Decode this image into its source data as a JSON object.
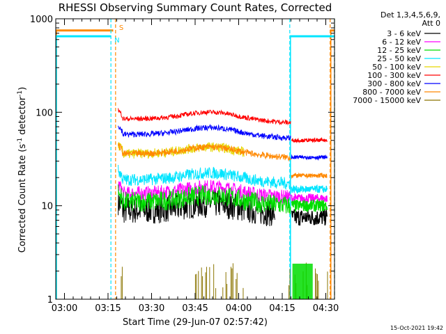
{
  "chart_data": {
    "type": "line",
    "title": "RHESSI Observing Summary Count Rates, Corrected",
    "xlabel": "Start Time (29-Jun-07 02:57:42)",
    "ylabel_main": "Corrected Count Rate (s",
    "ylabel_sup1": "-1",
    "ylabel_mid": " detector",
    "ylabel_sup2": "-1",
    "ylabel_end": ")",
    "y_scale": "log",
    "ylim": [
      1,
      1000
    ],
    "xlim_minutes": [
      -3,
      93
    ],
    "x_ticks": [
      {
        "m": 0,
        "label": "03:00"
      },
      {
        "m": 15,
        "label": "03:15"
      },
      {
        "m": 30,
        "label": "03:30"
      },
      {
        "m": 45,
        "label": "03:45"
      },
      {
        "m": 60,
        "label": "04:00"
      },
      {
        "m": 75,
        "label": "04:15"
      },
      {
        "m": 90,
        "label": "04:30"
      }
    ],
    "y_ticks": [
      {
        "v": 1,
        "label": "1"
      },
      {
        "v": 10,
        "label": "10"
      },
      {
        "v": 100,
        "label": "100"
      },
      {
        "v": 1000,
        "label": "1000"
      }
    ],
    "legend_header": [
      "Det 1,3,4,5,6,9,",
      "Att 0"
    ],
    "legend_placement": "right",
    "series": [
      {
        "name": "3 - 6 keV",
        "color": "#000000",
        "level": 9,
        "noise": 0.35,
        "segments": [
          {
            "x0": 18.5,
            "x1": 72.5
          }
        ],
        "tail": 7.5
      },
      {
        "name": "6 - 12 keV",
        "color": "#ff00ff",
        "level": 13.5,
        "noise": 0.18,
        "segments": [
          {
            "x0": 18.5,
            "x1": 78
          }
        ],
        "tail": 12
      },
      {
        "name": "12 - 25 keV",
        "color": "#00dd00",
        "level": 11,
        "noise": 0.25,
        "segments": [
          {
            "x0": 18.5,
            "x1": 78
          }
        ],
        "tail": 10
      },
      {
        "name": "25 - 50 keV",
        "color": "#00e5ff",
        "level": 19,
        "noise": 0.15,
        "segments": [
          {
            "x0": 18.5,
            "x1": 78
          }
        ],
        "tail": 15
      },
      {
        "name": "50 - 100 keV",
        "color": "#e6d800",
        "level": 36,
        "noise": 0.12,
        "segments": [
          {
            "x0": 18.5,
            "x1": 62
          }
        ]
      },
      {
        "name": "100 - 300 keV",
        "color": "#ff0000",
        "level": 85,
        "noise": 0.06,
        "segments": [
          {
            "x0": 18.5,
            "x1": 78
          }
        ],
        "tail": 50
      },
      {
        "name": "300 - 800 keV",
        "color": "#0000ff",
        "level": 58,
        "noise": 0.07,
        "segments": [
          {
            "x0": 18.5,
            "x1": 78
          }
        ],
        "tail": 33
      },
      {
        "name": "800 - 7000 keV",
        "color": "#ff8800",
        "level": 36,
        "noise": 0.08,
        "segments": [
          {
            "x0": 18.5,
            "x1": 78
          }
        ],
        "tail": 21
      },
      {
        "name": "7000 - 15000 keV",
        "color": "#8b7500",
        "level": 2,
        "noise": 0,
        "segments": [
          {
            "x0": 18.5,
            "x1": 93
          }
        ]
      }
    ],
    "annotations": [
      {
        "text": "S",
        "color": "#ff8800"
      },
      {
        "text": "N",
        "color": "#00e5ff"
      }
    ],
    "flags": [
      {
        "name": "saa",
        "color": "#ff8800",
        "label": "S",
        "value": 750,
        "intervals": [
          [
            -3,
            16.8
          ],
          [
            91.5,
            93
          ]
        ],
        "dashed_at": [
          17.6,
          91.5,
          93
        ]
      },
      {
        "name": "night",
        "color": "#00e5ff",
        "label": "N",
        "value": 650,
        "intervals": [
          [
            -3,
            16.0
          ],
          [
            77.6,
            93
          ]
        ],
        "dashed_at": [
          16.0,
          77.6,
          93
        ]
      }
    ],
    "grid": false
  },
  "footer": {
    "timestamp": "15-Oct-2021 19:42"
  }
}
